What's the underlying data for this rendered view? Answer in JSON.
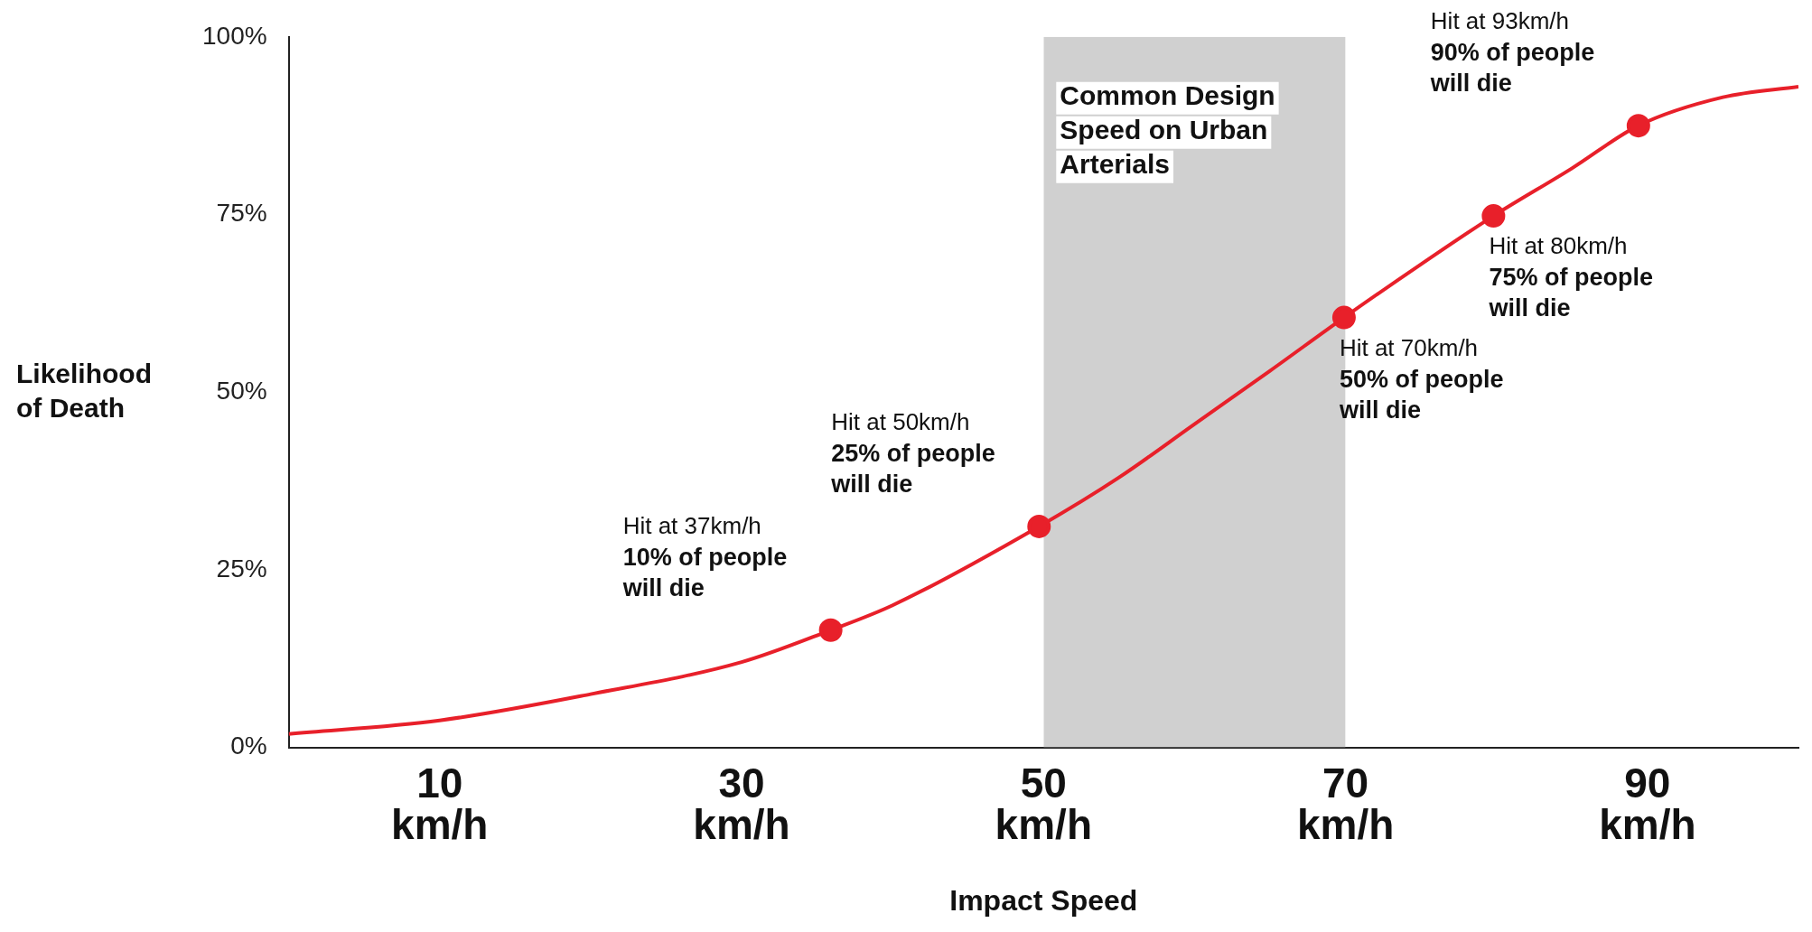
{
  "chart_data": {
    "type": "line",
    "xlabel": "Impact Speed",
    "ylabel": "Likelihood of Death",
    "xlim": [
      0,
      100
    ],
    "xticks": [
      {
        "value": 10,
        "label": "10\nkm/h"
      },
      {
        "value": 30,
        "label": "30\nkm/h"
      },
      {
        "value": 50,
        "label": "50\nkm/h"
      },
      {
        "value": 70,
        "label": "70\nkm/h"
      },
      {
        "value": 90,
        "label": "90\nkm/h"
      }
    ],
    "ylim": [
      0,
      100
    ],
    "yticks": [
      {
        "value": 0,
        "label": "0%"
      },
      {
        "value": 25,
        "label": "25%"
      },
      {
        "value": 50,
        "label": "50%"
      },
      {
        "value": 75,
        "label": "75%"
      },
      {
        "value": 100,
        "label": "100%"
      }
    ],
    "grid": false,
    "legend": false,
    "bands": [
      {
        "axis": "x",
        "from": 50,
        "to": 70,
        "label": "Common Design Speed on Urban Arterials",
        "color": "#d0d0d0"
      }
    ],
    "series": [
      {
        "color": "#e8202a",
        "marker": "none",
        "x": [
          0,
          10,
          20,
          30,
          35.9,
          40,
          49.7,
          55,
          60,
          65,
          69.9,
          75,
          79.8,
          85,
          89.4,
          95,
          100
        ],
        "values": [
          1.9,
          3.8,
          7.5,
          12,
          16.5,
          20,
          31.1,
          38,
          45.5,
          53,
          60.5,
          68,
          74.8,
          81.5,
          87.5,
          91.5,
          93
        ]
      },
      {
        "type": "scatter",
        "color": "#e8202a",
        "marker": "circle",
        "x": [
          35.9,
          49.7,
          69.9,
          79.8,
          89.4
        ],
        "values": [
          16.5,
          31.1,
          60.5,
          74.8,
          87.5
        ]
      }
    ],
    "annotations": [
      {
        "text": "Hit at 37km/h\n10% of people\nwill die",
        "x": 35.9,
        "y": 16.5
      },
      {
        "text": "Hit at 50km/h\n25% of people\nwill die",
        "x": 49.7,
        "y": 31.1
      },
      {
        "text": "Hit at 70km/h\n50% of people\nwill die",
        "x": 69.9,
        "y": 60.5
      },
      {
        "text": "Hit at 80km/h\n75% of people\nwill die",
        "x": 79.8,
        "y": 74.8
      },
      {
        "text": "Hit at 93km/h\n90% of people\nwill die",
        "x": 89.4,
        "y": 87.5
      }
    ]
  }
}
